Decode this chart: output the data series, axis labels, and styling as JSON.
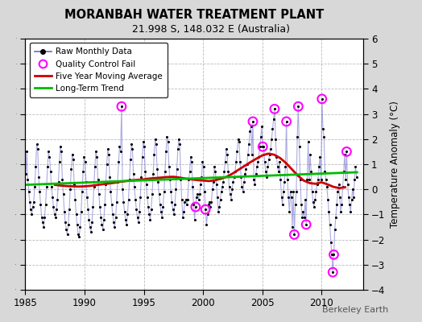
{
  "title": "MORANBAH WATER TREATMENT PLANT",
  "subtitle": "21.998 S, 148.032 E (Australia)",
  "ylabel": "Temperature Anomaly (°C)",
  "watermark": "Berkeley Earth",
  "xlim": [
    1985,
    2013.5
  ],
  "ylim": [
    -4,
    6
  ],
  "yticks": [
    -4,
    -3,
    -2,
    -1,
    0,
    1,
    2,
    3,
    4,
    5,
    6
  ],
  "xticks": [
    1985,
    1990,
    1995,
    2000,
    2005,
    2010
  ],
  "fig_bg_color": "#d8d8d8",
  "plot_bg": "#ffffff",
  "raw_line_color": "#6666cc",
  "raw_line_alpha": 0.55,
  "raw_dot_color": "#000000",
  "qc_fail_color": "#ff00ff",
  "moving_avg_color": "#cc0000",
  "trend_color": "#00bb00",
  "raw_data": [
    [
      1985.042,
      0.6
    ],
    [
      1985.125,
      1.5
    ],
    [
      1985.208,
      0.4
    ],
    [
      1985.292,
      -0.1
    ],
    [
      1985.375,
      -0.5
    ],
    [
      1985.458,
      -0.8
    ],
    [
      1985.542,
      -1.0
    ],
    [
      1985.625,
      -0.7
    ],
    [
      1985.708,
      -0.5
    ],
    [
      1985.792,
      0.1
    ],
    [
      1985.875,
      0.9
    ],
    [
      1985.958,
      1.8
    ],
    [
      1986.042,
      1.6
    ],
    [
      1986.125,
      0.5
    ],
    [
      1986.208,
      -0.1
    ],
    [
      1986.292,
      -0.6
    ],
    [
      1986.375,
      -1.1
    ],
    [
      1986.458,
      -1.3
    ],
    [
      1986.542,
      -1.5
    ],
    [
      1986.625,
      -1.1
    ],
    [
      1986.708,
      -0.6
    ],
    [
      1986.792,
      0.1
    ],
    [
      1986.875,
      0.9
    ],
    [
      1986.958,
      1.5
    ],
    [
      1987.042,
      1.3
    ],
    [
      1987.125,
      0.7
    ],
    [
      1987.208,
      0.1
    ],
    [
      1987.292,
      -0.3
    ],
    [
      1987.375,
      -0.7
    ],
    [
      1987.458,
      -1.0
    ],
    [
      1987.542,
      -1.1
    ],
    [
      1987.625,
      -0.8
    ],
    [
      1987.708,
      -0.4
    ],
    [
      1987.792,
      0.3
    ],
    [
      1987.875,
      1.1
    ],
    [
      1987.958,
      1.7
    ],
    [
      1988.042,
      1.5
    ],
    [
      1988.125,
      0.4
    ],
    [
      1988.208,
      -0.2
    ],
    [
      1988.292,
      -0.9
    ],
    [
      1988.375,
      -1.3
    ],
    [
      1988.458,
      -1.6
    ],
    [
      1988.542,
      -1.8
    ],
    [
      1988.625,
      -1.4
    ],
    [
      1988.708,
      -0.8
    ],
    [
      1988.792,
      0.0
    ],
    [
      1988.875,
      0.8
    ],
    [
      1988.958,
      1.4
    ],
    [
      1989.042,
      1.2
    ],
    [
      1989.125,
      0.2
    ],
    [
      1989.208,
      -0.4
    ],
    [
      1989.292,
      -1.0
    ],
    [
      1989.375,
      -1.4
    ],
    [
      1989.458,
      -1.8
    ],
    [
      1989.542,
      -1.9
    ],
    [
      1989.625,
      -1.5
    ],
    [
      1989.708,
      -0.9
    ],
    [
      1989.792,
      -0.1
    ],
    [
      1989.875,
      0.7
    ],
    [
      1989.958,
      1.3
    ],
    [
      1990.042,
      1.1
    ],
    [
      1990.125,
      0.3
    ],
    [
      1990.208,
      -0.3
    ],
    [
      1990.292,
      -0.8
    ],
    [
      1990.375,
      -1.2
    ],
    [
      1990.458,
      -1.5
    ],
    [
      1990.542,
      -1.7
    ],
    [
      1990.625,
      -1.3
    ],
    [
      1990.708,
      -0.7
    ],
    [
      1990.792,
      0.1
    ],
    [
      1990.875,
      0.9
    ],
    [
      1990.958,
      1.5
    ],
    [
      1991.042,
      1.3
    ],
    [
      1991.125,
      0.4
    ],
    [
      1991.208,
      -0.2
    ],
    [
      1991.292,
      -0.7
    ],
    [
      1991.375,
      -1.1
    ],
    [
      1991.458,
      -1.4
    ],
    [
      1991.542,
      -1.6
    ],
    [
      1991.625,
      -1.2
    ],
    [
      1991.708,
      -0.6
    ],
    [
      1991.792,
      0.2
    ],
    [
      1991.875,
      1.0
    ],
    [
      1991.958,
      1.6
    ],
    [
      1992.042,
      1.4
    ],
    [
      1992.125,
      0.5
    ],
    [
      1992.208,
      -0.1
    ],
    [
      1992.292,
      -0.6
    ],
    [
      1992.375,
      -1.0
    ],
    [
      1992.458,
      -1.3
    ],
    [
      1992.542,
      -1.5
    ],
    [
      1992.625,
      -1.1
    ],
    [
      1992.708,
      -0.5
    ],
    [
      1992.792,
      0.3
    ],
    [
      1992.875,
      1.1
    ],
    [
      1992.958,
      1.7
    ],
    [
      1993.042,
      1.5
    ],
    [
      1993.125,
      3.3
    ],
    [
      1993.208,
      0.0
    ],
    [
      1993.292,
      -0.5
    ],
    [
      1993.375,
      -0.9
    ],
    [
      1993.458,
      -1.2
    ],
    [
      1993.542,
      -1.4
    ],
    [
      1993.625,
      -1.0
    ],
    [
      1993.708,
      -0.4
    ],
    [
      1993.792,
      0.4
    ],
    [
      1993.875,
      1.2
    ],
    [
      1993.958,
      1.8
    ],
    [
      1994.042,
      1.6
    ],
    [
      1994.125,
      0.6
    ],
    [
      1994.208,
      0.1
    ],
    [
      1994.292,
      -0.4
    ],
    [
      1994.375,
      -0.8
    ],
    [
      1994.458,
      -1.1
    ],
    [
      1994.542,
      -1.3
    ],
    [
      1994.625,
      -0.9
    ],
    [
      1994.708,
      -0.3
    ],
    [
      1994.792,
      0.5
    ],
    [
      1994.875,
      1.3
    ],
    [
      1994.958,
      1.9
    ],
    [
      1995.042,
      1.7
    ],
    [
      1995.125,
      0.7
    ],
    [
      1995.208,
      0.2
    ],
    [
      1995.292,
      -0.3
    ],
    [
      1995.375,
      -0.7
    ],
    [
      1995.458,
      -1.0
    ],
    [
      1995.542,
      -1.2
    ],
    [
      1995.625,
      -0.8
    ],
    [
      1995.708,
      -0.2
    ],
    [
      1995.792,
      0.6
    ],
    [
      1995.875,
      1.4
    ],
    [
      1995.958,
      2.0
    ],
    [
      1996.042,
      1.8
    ],
    [
      1996.125,
      0.8
    ],
    [
      1996.208,
      0.3
    ],
    [
      1996.292,
      -0.2
    ],
    [
      1996.375,
      -0.6
    ],
    [
      1996.458,
      -0.9
    ],
    [
      1996.542,
      -1.1
    ],
    [
      1996.625,
      -0.7
    ],
    [
      1996.708,
      -0.1
    ],
    [
      1996.792,
      0.7
    ],
    [
      1996.875,
      1.5
    ],
    [
      1996.958,
      2.1
    ],
    [
      1997.042,
      1.9
    ],
    [
      1997.125,
      0.9
    ],
    [
      1997.208,
      0.4
    ],
    [
      1997.292,
      -0.1
    ],
    [
      1997.375,
      -0.5
    ],
    [
      1997.458,
      -0.8
    ],
    [
      1997.542,
      -1.0
    ],
    [
      1997.625,
      -0.6
    ],
    [
      1997.708,
      0.0
    ],
    [
      1997.792,
      0.8
    ],
    [
      1997.875,
      1.6
    ],
    [
      1997.958,
      2.0
    ],
    [
      1998.042,
      1.8
    ],
    [
      1998.125,
      0.4
    ],
    [
      1998.208,
      -0.4
    ],
    [
      1998.292,
      -1.1
    ],
    [
      1998.375,
      -0.9
    ],
    [
      1998.458,
      -0.5
    ],
    [
      1998.542,
      -0.4
    ],
    [
      1998.625,
      -0.6
    ],
    [
      1998.708,
      -0.4
    ],
    [
      1998.792,
      0.4
    ],
    [
      1998.875,
      0.7
    ],
    [
      1998.958,
      1.3
    ],
    [
      1999.042,
      1.1
    ],
    [
      1999.125,
      0.1
    ],
    [
      1999.208,
      -0.6
    ],
    [
      1999.292,
      -1.2
    ],
    [
      1999.375,
      -0.7
    ],
    [
      1999.458,
      -0.3
    ],
    [
      1999.542,
      -0.2
    ],
    [
      1999.625,
      -0.4
    ],
    [
      1999.708,
      -0.2
    ],
    [
      1999.792,
      0.2
    ],
    [
      1999.875,
      0.5
    ],
    [
      1999.958,
      1.1
    ],
    [
      2000.042,
      0.9
    ],
    [
      2000.125,
      -0.1
    ],
    [
      2000.208,
      -0.8
    ],
    [
      2000.292,
      -1.4
    ],
    [
      2000.375,
      -1.0
    ],
    [
      2000.458,
      -0.6
    ],
    [
      2000.542,
      -0.5
    ],
    [
      2000.625,
      -0.7
    ],
    [
      2000.708,
      -0.5
    ],
    [
      2000.792,
      0.0
    ],
    [
      2000.875,
      0.3
    ],
    [
      2000.958,
      0.9
    ],
    [
      2001.042,
      0.7
    ],
    [
      2001.125,
      0.2
    ],
    [
      2001.208,
      -0.3
    ],
    [
      2001.292,
      -0.9
    ],
    [
      2001.375,
      -0.7
    ],
    [
      2001.458,
      -0.4
    ],
    [
      2001.542,
      -0.1
    ],
    [
      2001.625,
      0.1
    ],
    [
      2001.708,
      0.3
    ],
    [
      2001.792,
      0.7
    ],
    [
      2001.875,
      1.1
    ],
    [
      2001.958,
      1.6
    ],
    [
      2002.042,
      1.4
    ],
    [
      2002.125,
      0.7
    ],
    [
      2002.208,
      0.1
    ],
    [
      2002.292,
      -0.2
    ],
    [
      2002.375,
      -0.4
    ],
    [
      2002.458,
      0.0
    ],
    [
      2002.542,
      0.3
    ],
    [
      2002.625,
      0.5
    ],
    [
      2002.708,
      0.7
    ],
    [
      2002.792,
      1.1
    ],
    [
      2002.875,
      1.5
    ],
    [
      2002.958,
      2.0
    ],
    [
      2003.042,
      1.9
    ],
    [
      2003.125,
      1.1
    ],
    [
      2003.208,
      0.5
    ],
    [
      2003.292,
      0.1
    ],
    [
      2003.375,
      -0.1
    ],
    [
      2003.458,
      0.3
    ],
    [
      2003.542,
      0.6
    ],
    [
      2003.625,
      0.8
    ],
    [
      2003.708,
      1.0
    ],
    [
      2003.792,
      1.4
    ],
    [
      2003.875,
      1.8
    ],
    [
      2003.958,
      2.3
    ],
    [
      2004.042,
      2.5
    ],
    [
      2004.125,
      1.4
    ],
    [
      2004.208,
      2.7
    ],
    [
      2004.292,
      0.4
    ],
    [
      2004.375,
      0.2
    ],
    [
      2004.458,
      0.6
    ],
    [
      2004.542,
      0.9
    ],
    [
      2004.625,
      1.1
    ],
    [
      2004.708,
      1.3
    ],
    [
      2004.792,
      1.7
    ],
    [
      2004.875,
      2.1
    ],
    [
      2004.958,
      2.5
    ],
    [
      2005.042,
      1.7
    ],
    [
      2005.125,
      1.7
    ],
    [
      2005.208,
      1.1
    ],
    [
      2005.292,
      0.7
    ],
    [
      2005.375,
      0.5
    ],
    [
      2005.458,
      0.9
    ],
    [
      2005.542,
      1.2
    ],
    [
      2005.625,
      1.4
    ],
    [
      2005.708,
      1.6
    ],
    [
      2005.792,
      2.0
    ],
    [
      2005.875,
      2.4
    ],
    [
      2005.958,
      2.8
    ],
    [
      2006.042,
      3.2
    ],
    [
      2006.125,
      2.0
    ],
    [
      2006.208,
      1.3
    ],
    [
      2006.292,
      0.9
    ],
    [
      2006.375,
      0.7
    ],
    [
      2006.458,
      1.1
    ],
    [
      2006.542,
      0.4
    ],
    [
      2006.625,
      -0.3
    ],
    [
      2006.708,
      -0.6
    ],
    [
      2006.792,
      -0.1
    ],
    [
      2006.875,
      0.3
    ],
    [
      2006.958,
      0.9
    ],
    [
      2007.042,
      2.7
    ],
    [
      2007.125,
      0.4
    ],
    [
      2007.208,
      -0.3
    ],
    [
      2007.292,
      -0.9
    ],
    [
      2007.375,
      -0.1
    ],
    [
      2007.458,
      -0.3
    ],
    [
      2007.542,
      -1.5
    ],
    [
      2007.625,
      -0.1
    ],
    [
      2007.708,
      -1.8
    ],
    [
      2007.792,
      -0.6
    ],
    [
      2007.875,
      -0.1
    ],
    [
      2007.958,
      2.1
    ],
    [
      2008.042,
      3.3
    ],
    [
      2008.125,
      1.7
    ],
    [
      2008.208,
      0.4
    ],
    [
      2008.292,
      -0.6
    ],
    [
      2008.375,
      -1.1
    ],
    [
      2008.458,
      -0.9
    ],
    [
      2008.542,
      -1.1
    ],
    [
      2008.625,
      -0.4
    ],
    [
      2008.708,
      -1.4
    ],
    [
      2008.792,
      0.4
    ],
    [
      2008.875,
      1.9
    ],
    [
      2008.958,
      0.4
    ],
    [
      2009.042,
      1.4
    ],
    [
      2009.125,
      0.7
    ],
    [
      2009.208,
      -0.1
    ],
    [
      2009.292,
      -0.5
    ],
    [
      2009.375,
      -0.7
    ],
    [
      2009.458,
      -0.4
    ],
    [
      2009.542,
      -0.1
    ],
    [
      2009.625,
      0.2
    ],
    [
      2009.708,
      0.4
    ],
    [
      2009.792,
      0.9
    ],
    [
      2009.875,
      1.3
    ],
    [
      2009.958,
      0.4
    ],
    [
      2010.042,
      3.6
    ],
    [
      2010.125,
      2.4
    ],
    [
      2010.208,
      2.1
    ],
    [
      2010.292,
      0.7
    ],
    [
      2010.375,
      0.4
    ],
    [
      2010.458,
      0.1
    ],
    [
      2010.542,
      -0.4
    ],
    [
      2010.625,
      -0.9
    ],
    [
      2010.708,
      -1.4
    ],
    [
      2010.792,
      -2.1
    ],
    [
      2010.875,
      -2.6
    ],
    [
      2010.958,
      -3.3
    ],
    [
      2011.042,
      -2.6
    ],
    [
      2011.125,
      -1.6
    ],
    [
      2011.208,
      -1.1
    ],
    [
      2011.292,
      -0.6
    ],
    [
      2011.375,
      -0.1
    ],
    [
      2011.458,
      0.2
    ],
    [
      2011.542,
      -0.3
    ],
    [
      2011.625,
      -0.9
    ],
    [
      2011.708,
      -0.6
    ],
    [
      2011.792,
      0.1
    ],
    [
      2011.875,
      0.7
    ],
    [
      2011.958,
      1.4
    ],
    [
      2012.042,
      0.4
    ],
    [
      2012.125,
      1.5
    ],
    [
      2012.208,
      0.2
    ],
    [
      2012.292,
      -0.3
    ],
    [
      2012.375,
      -0.6
    ],
    [
      2012.458,
      -0.9
    ],
    [
      2012.542,
      -0.4
    ],
    [
      2012.625,
      0.0
    ],
    [
      2012.708,
      -0.3
    ],
    [
      2012.792,
      0.4
    ],
    [
      2012.875,
      0.9
    ],
    [
      2012.958,
      0.5
    ]
  ],
  "qc_fail_points": [
    [
      1993.125,
      3.3
    ],
    [
      1999.375,
      -0.7
    ],
    [
      2000.208,
      -0.8
    ],
    [
      2004.208,
      2.7
    ],
    [
      2005.042,
      1.7
    ],
    [
      2006.042,
      3.2
    ],
    [
      2007.042,
      2.7
    ],
    [
      2007.708,
      -1.8
    ],
    [
      2008.042,
      3.3
    ],
    [
      2008.708,
      -1.4
    ],
    [
      2010.042,
      3.6
    ],
    [
      2010.958,
      -3.3
    ],
    [
      2011.042,
      -2.6
    ],
    [
      2012.125,
      1.5
    ]
  ],
  "moving_avg": [
    [
      1987.5,
      0.18
    ],
    [
      1988.0,
      0.15
    ],
    [
      1988.5,
      0.13
    ],
    [
      1989.0,
      0.12
    ],
    [
      1989.5,
      0.11
    ],
    [
      1990.0,
      0.12
    ],
    [
      1990.5,
      0.14
    ],
    [
      1991.0,
      0.17
    ],
    [
      1991.5,
      0.2
    ],
    [
      1992.0,
      0.23
    ],
    [
      1992.5,
      0.26
    ],
    [
      1993.0,
      0.3
    ],
    [
      1993.5,
      0.33
    ],
    [
      1994.0,
      0.36
    ],
    [
      1994.5,
      0.38
    ],
    [
      1995.0,
      0.4
    ],
    [
      1995.5,
      0.43
    ],
    [
      1996.0,
      0.45
    ],
    [
      1996.5,
      0.47
    ],
    [
      1997.0,
      0.49
    ],
    [
      1997.5,
      0.5
    ],
    [
      1998.0,
      0.47
    ],
    [
      1998.5,
      0.43
    ],
    [
      1999.0,
      0.4
    ],
    [
      1999.5,
      0.37
    ],
    [
      2000.0,
      0.35
    ],
    [
      2000.5,
      0.33
    ],
    [
      2001.0,
      0.36
    ],
    [
      2001.5,
      0.42
    ],
    [
      2002.0,
      0.5
    ],
    [
      2002.5,
      0.63
    ],
    [
      2003.0,
      0.78
    ],
    [
      2003.5,
      0.93
    ],
    [
      2004.0,
      1.08
    ],
    [
      2004.5,
      1.22
    ],
    [
      2005.0,
      1.35
    ],
    [
      2005.5,
      1.42
    ],
    [
      2006.0,
      1.38
    ],
    [
      2006.5,
      1.25
    ],
    [
      2007.0,
      1.05
    ],
    [
      2007.5,
      0.8
    ],
    [
      2008.0,
      0.55
    ],
    [
      2008.5,
      0.35
    ],
    [
      2009.0,
      0.25
    ],
    [
      2009.5,
      0.22
    ],
    [
      2010.0,
      0.28
    ],
    [
      2010.5,
      0.2
    ],
    [
      2011.0,
      0.1
    ],
    [
      2011.5,
      0.05
    ],
    [
      2012.0,
      0.08
    ]
  ],
  "trend_x": [
    1985,
    2013
  ],
  "trend_y": [
    0.18,
    0.68
  ]
}
